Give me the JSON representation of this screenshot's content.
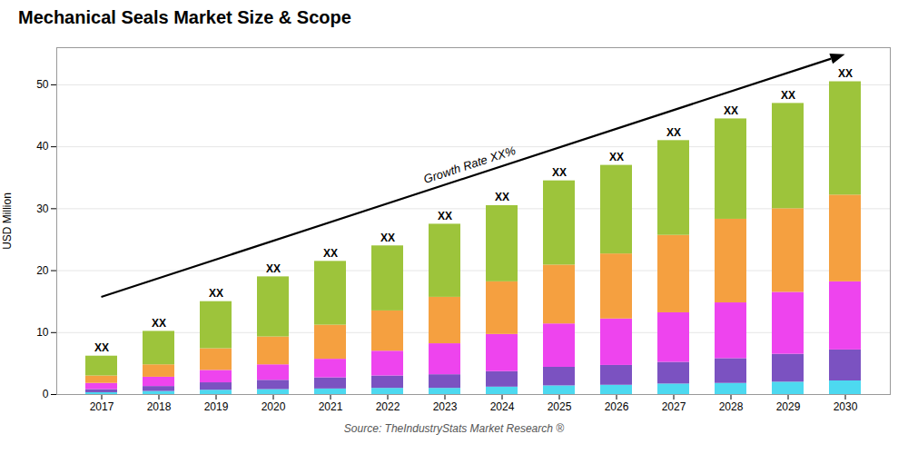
{
  "chart_data": {
    "type": "bar",
    "title": "Mechanical Seals Market Size & Scope",
    "ylabel": "USD Million",
    "source": "Source: TheIndustryStats Market Research ®",
    "bar_label": "XX",
    "arrow_label": "Growth Rate XX%",
    "categories": [
      2017,
      2018,
      2019,
      2020,
      2021,
      2022,
      2023,
      2024,
      2025,
      2026,
      2027,
      2028,
      2029,
      2030
    ],
    "series": [
      {
        "color": "#4DD9F0",
        "values": [
          0.3,
          0.5,
          0.7,
          0.8,
          0.9,
          1.0,
          1.0,
          1.2,
          1.4,
          1.5,
          1.7,
          1.8,
          2.0,
          2.2
        ]
      },
      {
        "color": "#7B52C1",
        "values": [
          0.5,
          0.8,
          1.2,
          1.5,
          1.8,
          2.0,
          2.2,
          2.5,
          3.0,
          3.2,
          3.5,
          4.0,
          4.5,
          5.0
        ]
      },
      {
        "color": "#EE44EE",
        "values": [
          1.0,
          1.5,
          2.0,
          2.5,
          3.0,
          4.0,
          5.0,
          6.0,
          7.0,
          7.5,
          8.0,
          9.0,
          10.0,
          11.0
        ]
      },
      {
        "color": "#F5A040",
        "values": [
          1.2,
          2.0,
          3.5,
          4.5,
          5.5,
          6.5,
          7.5,
          8.5,
          9.5,
          10.5,
          12.5,
          13.5,
          13.5,
          14.0
        ]
      },
      {
        "color": "#9DC43B",
        "values": [
          3.2,
          5.4,
          7.6,
          9.7,
          10.3,
          10.5,
          11.8,
          12.3,
          13.6,
          14.3,
          15.3,
          16.2,
          17.0,
          18.3
        ]
      }
    ],
    "stacked": true,
    "ylim": [
      0,
      56
    ],
    "yticks": [
      0,
      10,
      20,
      30,
      40,
      50
    ],
    "grid": true
  }
}
